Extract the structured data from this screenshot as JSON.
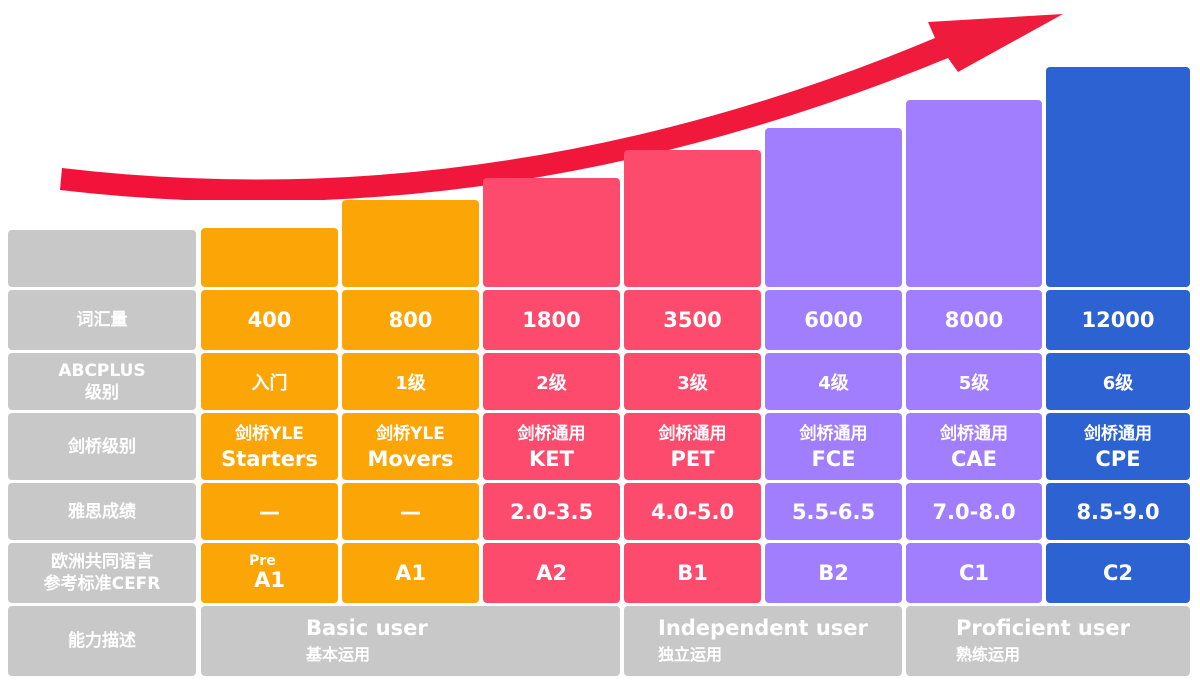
{
  "row_headers": {
    "vocab": "词汇量",
    "abcplus": [
      "ABCPLUS",
      "级别"
    ],
    "cambridge": "剑桥级别",
    "ielts": "雅思成绩",
    "cefr": [
      "欧洲共同语言",
      "参考标准CEFR"
    ],
    "ability": "能力描述"
  },
  "levels": [
    {
      "vocab": "400",
      "abcplus": "入门",
      "cam_line1": "剑桥YLE",
      "cam_line2": "Starters",
      "ielts": "—",
      "cefr_pre": "Pre",
      "cefr": "A1",
      "color": "#fba507"
    },
    {
      "vocab": "800",
      "abcplus": "1级",
      "cam_line1": "剑桥YLE",
      "cam_line2": "Movers",
      "ielts": "—",
      "cefr_pre": "",
      "cefr": "A1",
      "color": "#fba507"
    },
    {
      "vocab": "1800",
      "abcplus": "2级",
      "cam_line1": "剑桥通用",
      "cam_line2": "KET",
      "ielts": "2.0-3.5",
      "cefr_pre": "",
      "cefr": "A2",
      "color": "#fd4b6d"
    },
    {
      "vocab": "3500",
      "abcplus": "3级",
      "cam_line1": "剑桥通用",
      "cam_line2": "PET",
      "ielts": "4.0-5.0",
      "cefr_pre": "",
      "cefr": "B1",
      "color": "#fd4b6d"
    },
    {
      "vocab": "6000",
      "abcplus": "4级",
      "cam_line1": "剑桥通用",
      "cam_line2": "FCE",
      "ielts": "5.5-6.5",
      "cefr_pre": "",
      "cefr": "B2",
      "color": "#a17efd"
    },
    {
      "vocab": "8000",
      "abcplus": "5级",
      "cam_line1": "剑桥通用",
      "cam_line2": "CAE",
      "ielts": "7.0-8.0",
      "cefr_pre": "",
      "cefr": "C1",
      "color": "#a17efd"
    },
    {
      "vocab": "12000",
      "abcplus": "6级",
      "cam_line1": "剑桥通用",
      "cam_line2": "CPE",
      "ielts": "8.5-9.0",
      "cefr_pre": "",
      "cefr": "C2",
      "color": "#2d62d2"
    }
  ],
  "ability_groups": [
    {
      "en": "Basic user",
      "zh": "基本运用"
    },
    {
      "en": "Independent user",
      "zh": "独立运用"
    },
    {
      "en": "Proficient user",
      "zh": "熟练运用"
    }
  ],
  "colors": {
    "gray": "#c8c8c8",
    "orange": "#fba507",
    "pink": "#fd4b6d",
    "purple": "#a17efd",
    "blue": "#2d62d2",
    "arrow": "#ee1c3c"
  }
}
